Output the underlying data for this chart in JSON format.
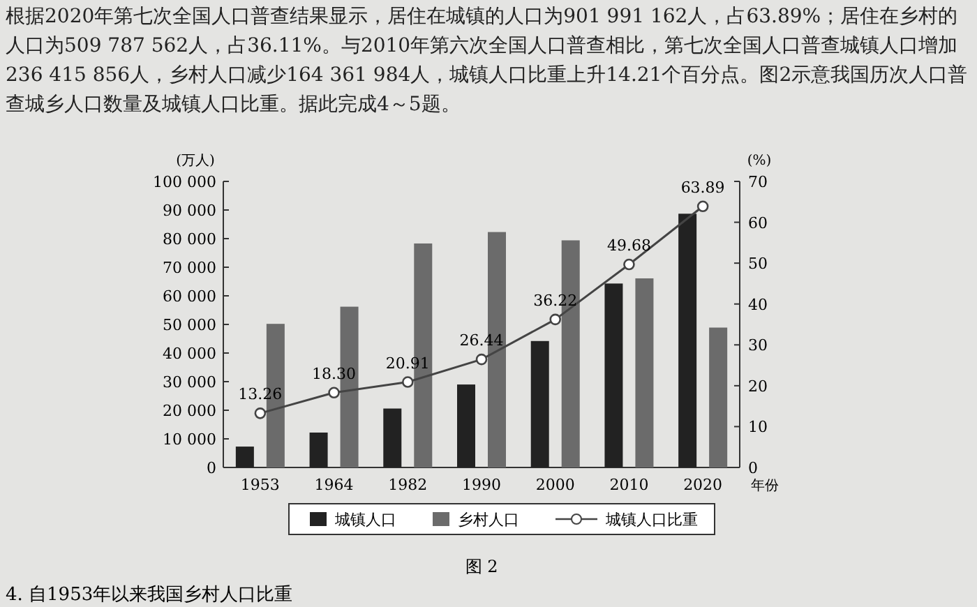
{
  "chart_data": {
    "type": "bar",
    "categories": [
      "1953",
      "1964",
      "1982",
      "1990",
      "2000",
      "2010",
      "2020"
    ],
    "series": [
      {
        "name": "城镇人口",
        "color": "#222222",
        "values": [
          7300,
          12200,
          20600,
          29000,
          44200,
          64300,
          88700
        ]
      },
      {
        "name": "乡村人口",
        "color": "#6b6b6b",
        "values": [
          50200,
          56200,
          78300,
          82300,
          79400,
          66100,
          48900
        ]
      },
      {
        "name": "城镇人口比重",
        "type": "line",
        "axis": "y2",
        "color": "#444444",
        "marker": "circle",
        "values": [
          13.26,
          18.3,
          20.91,
          26.44,
          36.22,
          49.68,
          63.89
        ],
        "value_labels": [
          "13.26",
          "18.30",
          "20.91",
          "26.44",
          "36.22",
          "49.68",
          "63.89"
        ]
      }
    ],
    "ylabel": "(万人)",
    "y2label": "(%)",
    "xlabel": "年份",
    "ylim": [
      0,
      100000
    ],
    "yticks": [
      0,
      {
        "value": 10000,
        "label": "10 000"
      },
      {
        "value": 20000,
        "label": "20 000"
      },
      {
        "value": 30000,
        "label": "30 000"
      },
      {
        "value": 40000,
        "label": "40 000"
      },
      {
        "value": 50000,
        "label": "50 000"
      },
      {
        "value": 60000,
        "label": "60 000"
      },
      {
        "value": 70000,
        "label": "70 000"
      },
      {
        "value": 80000,
        "label": "80 000"
      },
      {
        "value": 90000,
        "label": "90 000"
      },
      {
        "value": 100000,
        "label": "100 000"
      }
    ],
    "y2lim": [
      0,
      70
    ],
    "y2ticks": [
      0,
      10,
      20,
      30,
      40,
      50,
      60,
      70
    ],
    "grid": false,
    "legend": "bottom",
    "annotations": [
      "根据2020年第七次全国人口普查结果显示，居住在城镇的人口为901 991 162人，占63.89%；居住在乡村的人口为509 787 562人，占36.11%。与2010年第六次全国人口普查相比，第七次全国人口普查城镇人口增加236 415 856人，乡村人口减少164 361 984人，城镇人口比重上升14.21个百分点。图2示意我国历次人口普查城乡人口数量及城镇人口比重。据此完成4～5题。",
      "图 2",
      "4. 自1953年以来我国乡村人口比重"
    ]
  }
}
